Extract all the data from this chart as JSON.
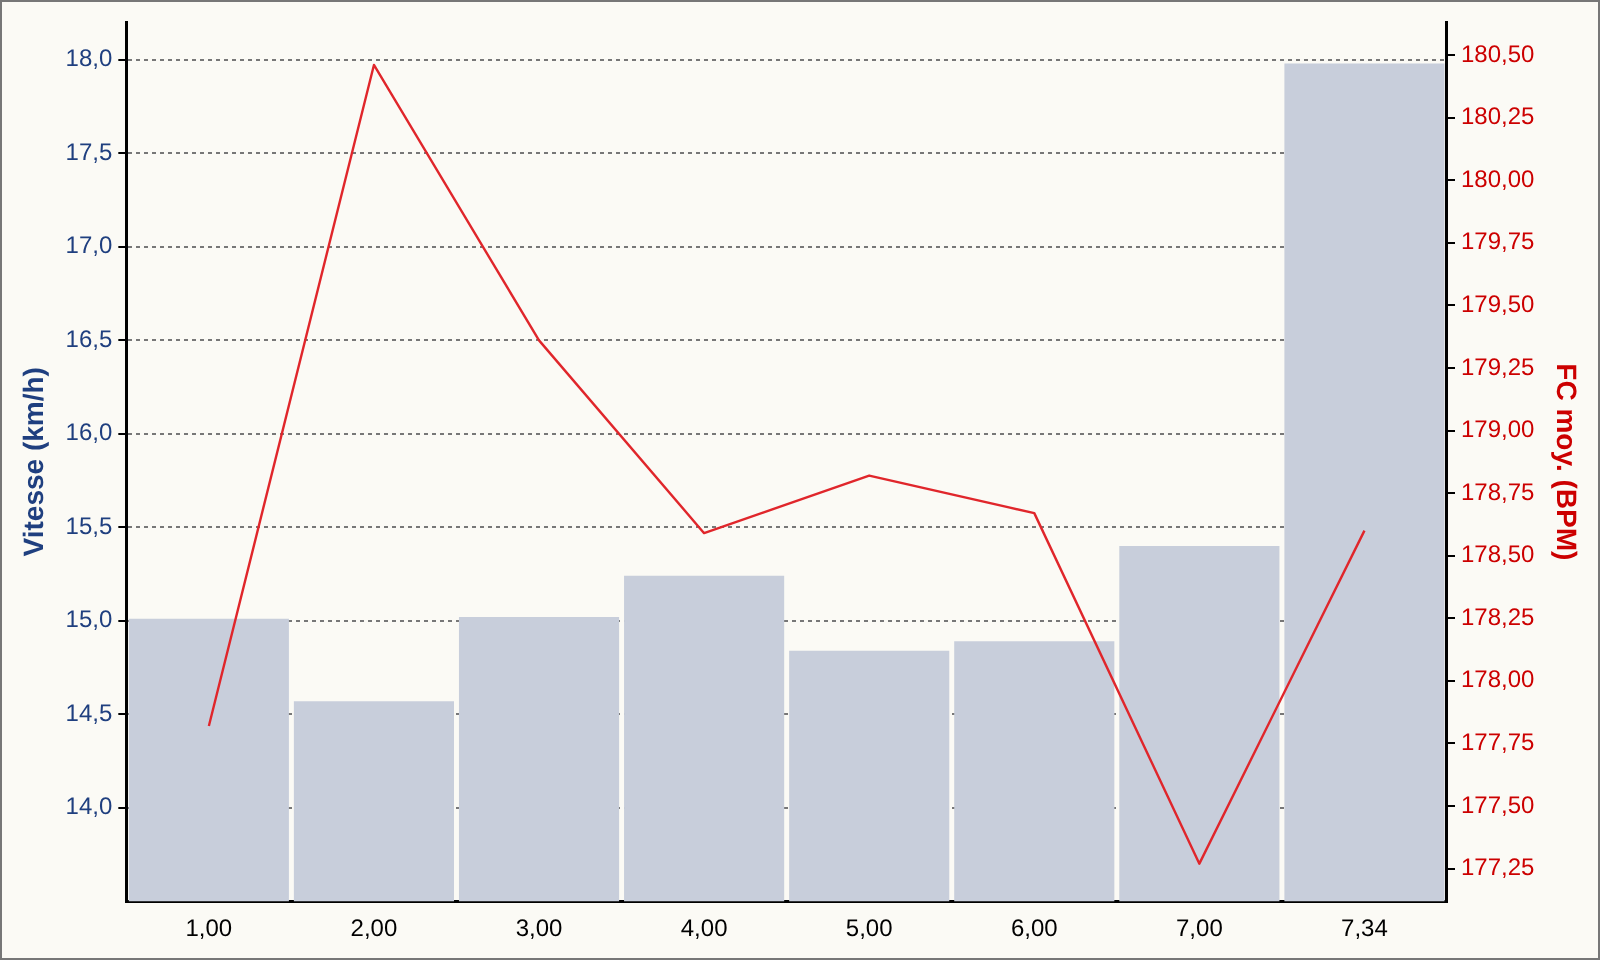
{
  "chart_data": {
    "type": "bar",
    "categories": [
      "1,00",
      "2,00",
      "3,00",
      "4,00",
      "5,00",
      "6,00",
      "7,00",
      "7,34"
    ],
    "series": [
      {
        "color": "#c8cedb",
        "values": [
          15.01,
          14.57,
          15.02,
          15.24,
          14.84,
          14.89,
          15.4,
          17.98
        ]
      },
      {
        "type": "line",
        "axis": "y2",
        "color": "#e0262b",
        "values": [
          177.82,
          180.46,
          179.36,
          178.59,
          178.82,
          178.67,
          177.27,
          178.6
        ]
      }
    ],
    "ylabel": "Vitesse (km/h)",
    "y2label": "FC moy. (BPM)",
    "ylim": [
      13.5,
      18.2
    ],
    "yticks": [
      {
        "value": 14,
        "label": "14,0"
      },
      {
        "value": 14.5,
        "label": "14,5"
      },
      {
        "value": 15,
        "label": "15,0"
      },
      {
        "value": 15.5,
        "label": "15,5"
      },
      {
        "value": 16,
        "label": "16,0"
      },
      {
        "value": 16.5,
        "label": "16,5"
      },
      {
        "value": 17,
        "label": "17,0"
      },
      {
        "value": 17.5,
        "label": "17,5"
      },
      {
        "value": 18,
        "label": "18,0"
      }
    ],
    "y2lim": [
      177.12,
      180.63
    ],
    "y2ticks": [
      {
        "value": 177.25,
        "label": "177,25"
      },
      {
        "value": 177.5,
        "label": "177,50"
      },
      {
        "value": 177.75,
        "label": "177,75"
      },
      {
        "value": 178,
        "label": "178,00"
      },
      {
        "value": 178.25,
        "label": "178,25"
      },
      {
        "value": 178.5,
        "label": "178,50"
      },
      {
        "value": 178.75,
        "label": "178,75"
      },
      {
        "value": 179,
        "label": "179,00"
      },
      {
        "value": 179.25,
        "label": "179,25"
      },
      {
        "value": 179.5,
        "label": "179,50"
      },
      {
        "value": 179.75,
        "label": "179,75"
      },
      {
        "value": 180,
        "label": "180,00"
      },
      {
        "value": 180.25,
        "label": "180,25"
      },
      {
        "value": 180.5,
        "label": "180,50"
      }
    ],
    "grid": "y",
    "marker": "none",
    "line_style": "solid"
  }
}
